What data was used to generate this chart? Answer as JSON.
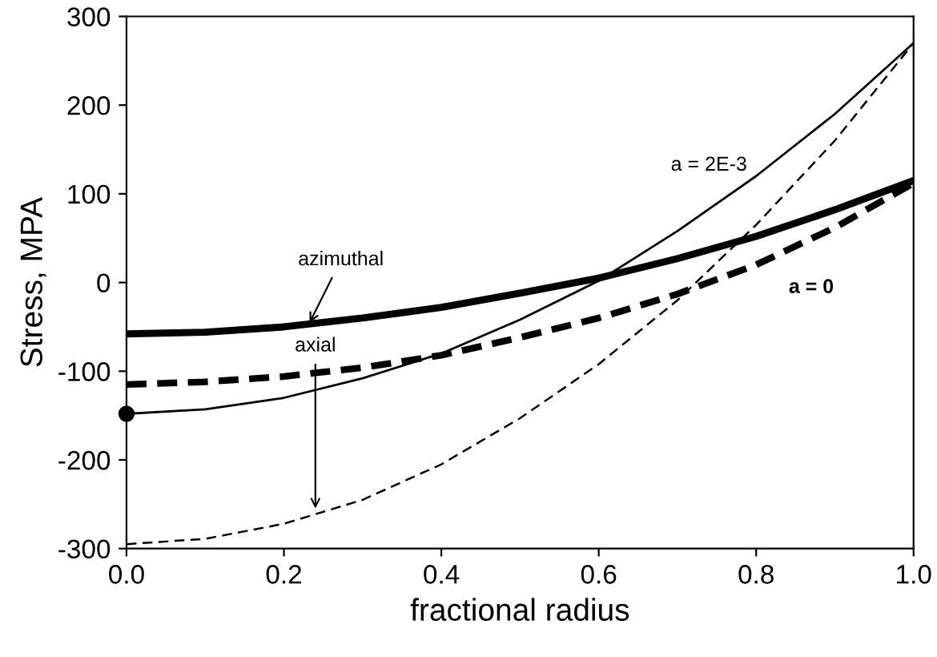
{
  "chart_data": {
    "type": "line",
    "xlabel": "fractional radius",
    "ylabel": "Stress, MPA",
    "x": [
      0,
      0.1,
      0.2,
      0.3,
      0.4,
      0.5,
      0.6,
      0.7,
      0.8,
      0.9,
      1.0
    ],
    "series": [
      {
        "color": "#000000",
        "line_style": "solid",
        "values": [
          -58,
          -56,
          -50,
          -40,
          -28,
          -12,
          5,
          27,
          52,
          82,
          115
        ]
      },
      {
        "color": "#000000",
        "line_style": "dashed",
        "values": [
          -115,
          -112,
          -106,
          -96,
          -82,
          -62,
          -40,
          -13,
          20,
          62,
          112
        ]
      },
      {
        "color": "#000000",
        "line_style": "solid",
        "values": [
          -148,
          -143,
          -130,
          -108,
          -80,
          -42,
          2,
          58,
          120,
          190,
          270
        ]
      },
      {
        "color": "#000000",
        "line_style": "dashed",
        "values": [
          -295,
          -289,
          -272,
          -245,
          -205,
          -153,
          -92,
          -20,
          65,
          160,
          270
        ]
      },
      {
        "type": "scatter",
        "color": "#000000",
        "marker": "circle",
        "x": [
          0
        ],
        "values": [
          -148
        ]
      }
    ],
    "annotations": [
      {
        "text": "azimuthal",
        "x": 0.23,
        "y": -50
      },
      {
        "text": "axial",
        "x": 0.24,
        "y": -260
      },
      "a = 2E-3",
      "a = 0"
    ],
    "xlim": [
      0,
      1
    ],
    "xticks": [
      {
        "value": 0,
        "label": "0.0"
      },
      0.2,
      0.4,
      0.6,
      0.8,
      {
        "value": 1,
        "label": "1.0"
      }
    ],
    "ylim": [
      -300,
      300
    ],
    "yticks": [
      -300,
      -200,
      -100,
      0,
      100,
      200,
      300
    ],
    "grid": false,
    "legend": false,
    "marker": "none"
  }
}
